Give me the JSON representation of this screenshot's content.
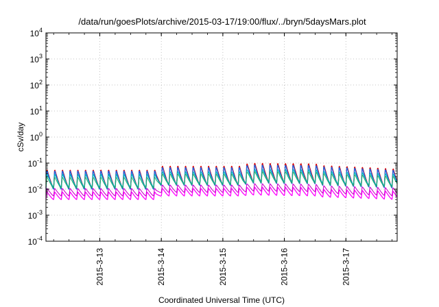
{
  "chart_data": {
    "type": "line",
    "title": "/data/run/goesPlots/archive/2015-03-17/19:00/flux/../bryn/5daysMars.plot",
    "xlabel": "Coordinated Universal Time (UTC)",
    "ylabel": "cSv/day",
    "y_scale": "log",
    "ylim": [
      0.0001,
      10000
    ],
    "y_ticks": [
      {
        "value": 0.0001,
        "base": "10",
        "exp": "-4"
      },
      {
        "value": 0.001,
        "base": "10",
        "exp": "-3"
      },
      {
        "value": 0.01,
        "base": "10",
        "exp": "-2"
      },
      {
        "value": 0.1,
        "base": "10",
        "exp": "-1"
      },
      {
        "value": 1,
        "base": "10",
        "exp": "0"
      },
      {
        "value": 10,
        "base": "10",
        "exp": "1"
      },
      {
        "value": 100,
        "base": "10",
        "exp": "2"
      },
      {
        "value": 1000,
        "base": "10",
        "exp": "3"
      },
      {
        "value": 10000,
        "base": "10",
        "exp": "4"
      }
    ],
    "xlim": [
      "2015-03-12 03:00",
      "2015-03-17 20:00"
    ],
    "x_ticks": [
      {
        "value": "2015-03-13",
        "label": "2015-3-13"
      },
      {
        "value": "2015-03-14",
        "label": "2015-3-14"
      },
      {
        "value": "2015-03-15",
        "label": "2015-3-15"
      },
      {
        "value": "2015-03-16",
        "label": "2015-3-16"
      },
      {
        "value": "2015-03-17",
        "label": "2015-3-17"
      }
    ],
    "grid": true,
    "legend": false,
    "oscillation_period_hours": 3,
    "series": [
      {
        "color": "#ff00ff",
        "width": 1.3,
        "points": [
          [
            "2015-03-12 03:00",
            0.004,
            0.008
          ],
          [
            "2015-03-13 22:00",
            0.004,
            0.008
          ],
          [
            "2015-03-14 00:00",
            0.0055,
            0.011
          ],
          [
            "2015-03-15 08:00",
            0.0055,
            0.011
          ],
          [
            "2015-03-15 10:00",
            0.006,
            0.0125
          ],
          [
            "2015-03-16 12:00",
            0.0055,
            0.012
          ],
          [
            "2015-03-16 15:00",
            0.005,
            0.01
          ],
          [
            "2015-03-17 20:00",
            0.004,
            0.0085
          ]
        ]
      },
      {
        "color": "#cc00cc",
        "width": 1.1,
        "points": [
          [
            "2015-03-12 03:00",
            0.0055,
            0.011
          ],
          [
            "2015-03-13 22:00",
            0.0055,
            0.011
          ],
          [
            "2015-03-14 00:00",
            0.0075,
            0.015
          ],
          [
            "2015-03-15 08:00",
            0.0075,
            0.015
          ],
          [
            "2015-03-15 10:00",
            0.0085,
            0.017
          ],
          [
            "2015-03-16 12:00",
            0.008,
            0.016
          ],
          [
            "2015-03-16 15:00",
            0.007,
            0.014
          ],
          [
            "2015-03-17 20:00",
            0.0055,
            0.0115
          ]
        ]
      },
      {
        "color": "#dd0000",
        "width": 1.3,
        "points": [
          [
            "2015-03-12 03:00",
            0.011,
            0.06
          ],
          [
            "2015-03-13 22:00",
            0.011,
            0.06
          ],
          [
            "2015-03-14 00:00",
            0.015,
            0.085
          ],
          [
            "2015-03-15 08:00",
            0.015,
            0.085
          ],
          [
            "2015-03-15 10:00",
            0.019,
            0.11
          ],
          [
            "2015-03-16 12:00",
            0.018,
            0.105
          ],
          [
            "2015-03-16 15:00",
            0.015,
            0.09
          ],
          [
            "2015-03-17 20:00",
            0.012,
            0.065
          ]
        ]
      },
      {
        "color": "#2060e0",
        "width": 1.3,
        "points": [
          [
            "2015-03-12 03:00",
            0.01,
            0.055
          ],
          [
            "2015-03-13 22:00",
            0.01,
            0.055
          ],
          [
            "2015-03-14 00:00",
            0.014,
            0.075
          ],
          [
            "2015-03-15 08:00",
            0.014,
            0.075
          ],
          [
            "2015-03-15 10:00",
            0.017,
            0.095
          ],
          [
            "2015-03-16 12:00",
            0.016,
            0.09
          ],
          [
            "2015-03-16 15:00",
            0.014,
            0.08
          ],
          [
            "2015-03-17 20:00",
            0.011,
            0.058
          ]
        ]
      },
      {
        "color": "#00b0c0",
        "width": 1.2,
        "points": [
          [
            "2015-03-12 03:00",
            0.012,
            0.04
          ],
          [
            "2015-03-13 22:00",
            0.012,
            0.04
          ],
          [
            "2015-03-14 00:00",
            0.016,
            0.05
          ],
          [
            "2015-03-15 08:00",
            0.016,
            0.05
          ],
          [
            "2015-03-15 10:00",
            0.02,
            0.062
          ],
          [
            "2015-03-16 12:00",
            0.019,
            0.06
          ],
          [
            "2015-03-16 15:00",
            0.017,
            0.052
          ],
          [
            "2015-03-17 20:00",
            0.013,
            0.04
          ]
        ]
      },
      {
        "color": "#22aa66",
        "width": 1.0,
        "points": [
          [
            "2015-03-12 03:00",
            0.011,
            0.03
          ],
          [
            "2015-03-13 22:00",
            0.011,
            0.03
          ],
          [
            "2015-03-14 00:00",
            0.015,
            0.04
          ],
          [
            "2015-03-15 08:00",
            0.015,
            0.04
          ],
          [
            "2015-03-15 10:00",
            0.018,
            0.05
          ],
          [
            "2015-03-16 12:00",
            0.017,
            0.048
          ],
          [
            "2015-03-16 15:00",
            0.015,
            0.042
          ],
          [
            "2015-03-17 20:00",
            0.012,
            0.032
          ]
        ]
      }
    ]
  }
}
